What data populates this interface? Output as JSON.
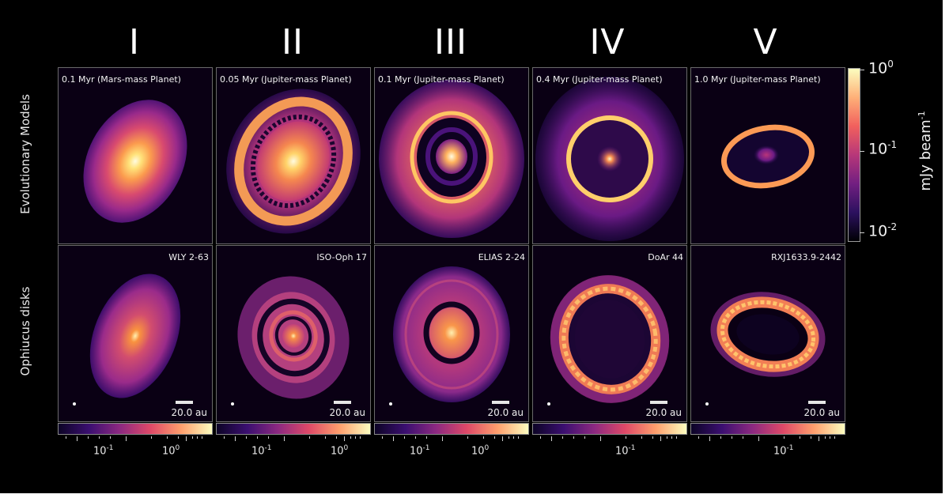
{
  "columns": [
    "I",
    "II",
    "III",
    "IV",
    "V"
  ],
  "rows": {
    "top": "Evolutionary Models",
    "bottom": "Ophiucus disks"
  },
  "top_panels": [
    {
      "caption": "0.1 Myr (Mars-mass Planet)"
    },
    {
      "caption": "0.05 Myr (Jupiter-mass Planet)"
    },
    {
      "caption": "0.1 Myr (Jupiter-mass Planet)"
    },
    {
      "caption": "0.4 Myr (Jupiter-mass Planet)"
    },
    {
      "caption": "1.0 Myr (Jupiter-mass Planet)"
    }
  ],
  "bottom_panels": [
    {
      "caption": "WLY 2-63",
      "scale": "20.0 au"
    },
    {
      "caption": "ISO-Oph 17",
      "scale": "20.0 au"
    },
    {
      "caption": "ELIAS 2-24",
      "scale": "20.0 au"
    },
    {
      "caption": "DoAr 44",
      "scale": "20.0 au"
    },
    {
      "caption": "RXJ1633.9-2442",
      "scale": "20.0 au"
    }
  ],
  "bottom_colorbars": [
    {
      "labels": [
        "10",
        "10"
      ],
      "exps": [
        "-1",
        "0"
      ]
    },
    {
      "labels": [
        "10",
        "10"
      ],
      "exps": [
        "-1",
        "0"
      ]
    },
    {
      "labels": [
        "10",
        "10"
      ],
      "exps": [
        "-1",
        "0"
      ]
    },
    {
      "labels": [
        "10"
      ],
      "exps": [
        "-1"
      ]
    },
    {
      "labels": [
        "10"
      ],
      "exps": [
        "-1"
      ]
    }
  ],
  "colorbar": {
    "title": "mJy beam",
    "title_exp": "-1",
    "ticks": [
      {
        "base": "10",
        "exp": "0"
      },
      {
        "base": "10",
        "exp": "-1"
      },
      {
        "base": "10",
        "exp": "-2"
      }
    ]
  },
  "colors": {
    "background": "#000000",
    "colormap": [
      "#000004",
      "#3b0f70",
      "#8c2981",
      "#de4968",
      "#fe9f6d",
      "#fcfdbf"
    ]
  }
}
